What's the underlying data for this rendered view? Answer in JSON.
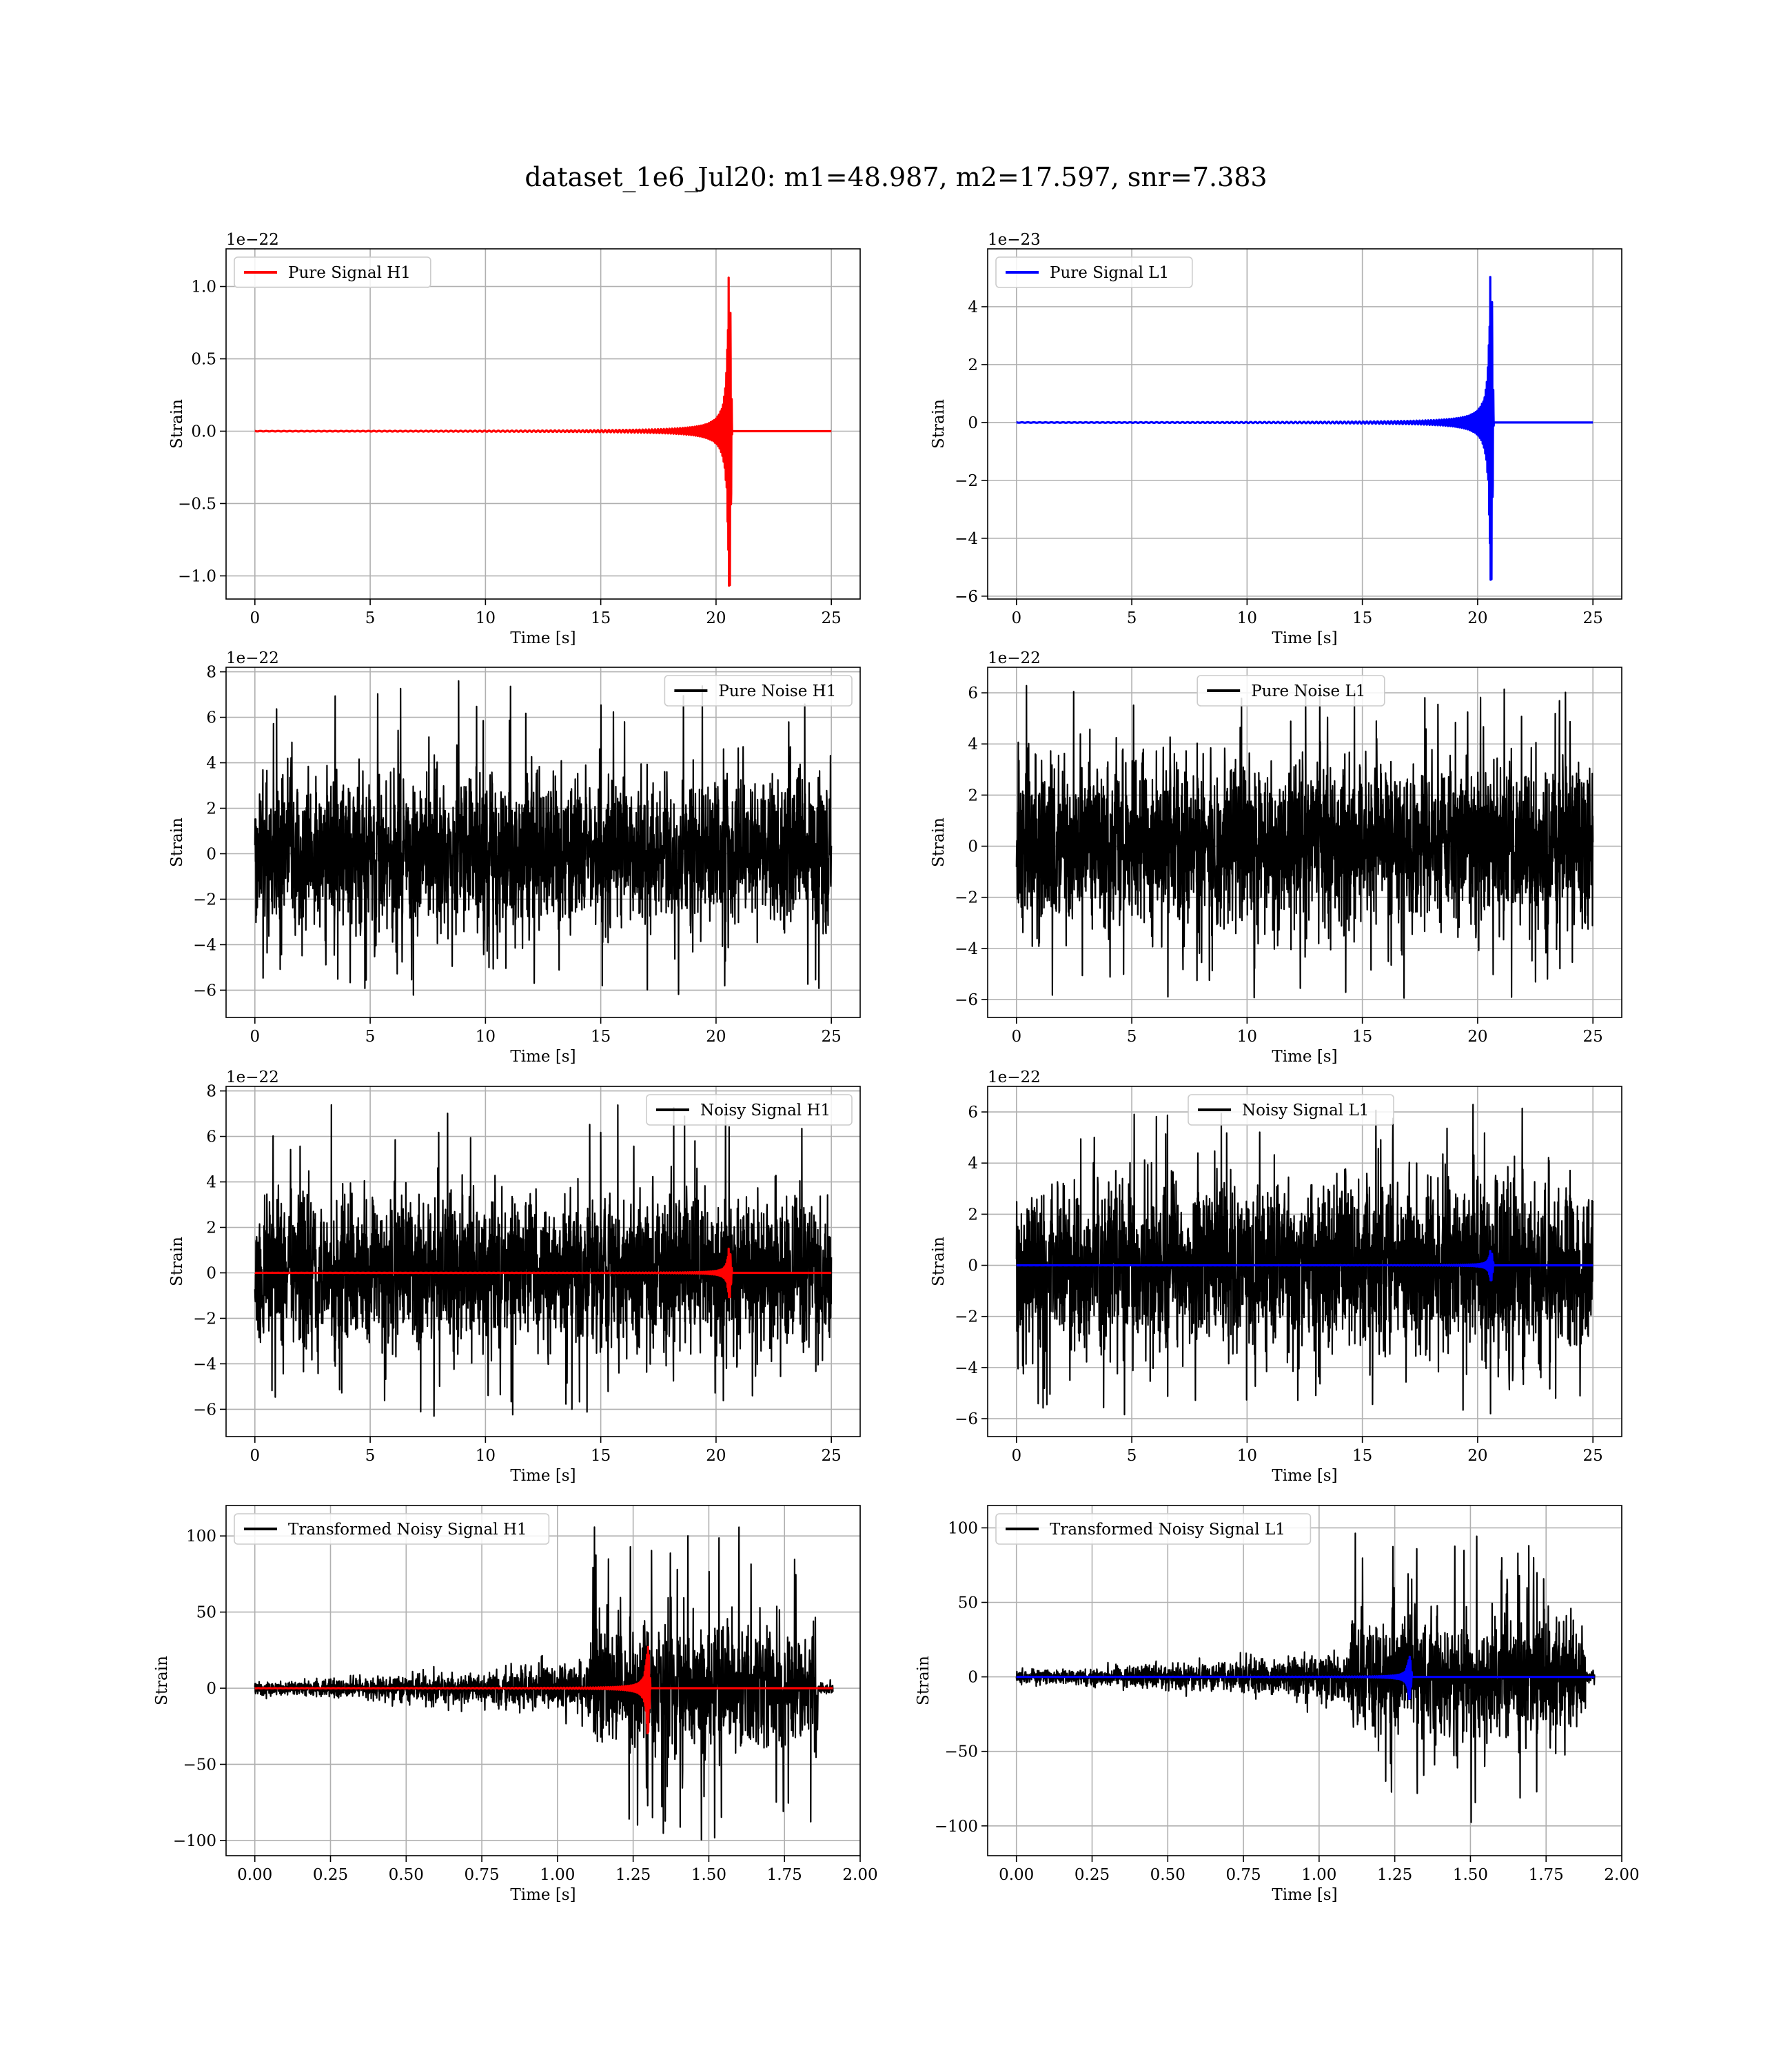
{
  "figure": {
    "title": "dataset_1e6_Jul20: m1=48.987, m2=17.597, snr=7.383"
  },
  "chart_data": [
    {
      "type": "line",
      "panel": "pure-signal-h1",
      "xlabel": "Time [s]",
      "ylabel": "Strain",
      "offset_text": "1e−22",
      "xlim": [
        -1.25,
        26.25
      ],
      "ylim": [
        -1.16,
        1.26
      ],
      "xticks": [
        0,
        5,
        10,
        15,
        20,
        25
      ],
      "xtick_labels": [
        "0",
        "5",
        "10",
        "15",
        "20",
        "25"
      ],
      "yticks": [
        -1.0,
        -0.5,
        0.0,
        0.5,
        1.0
      ],
      "ytick_labels": [
        "−1.0",
        "−0.5",
        "0.0",
        "0.5",
        "1.0"
      ],
      "grid": true,
      "legend": {
        "position": "top-left",
        "entries": [
          {
            "label": "Pure Signal H1",
            "color": "#ff0000"
          }
        ]
      },
      "series": [
        {
          "name": "Pure Signal H1",
          "color": "#ff0000",
          "kind": "chirp",
          "x_start": 0,
          "x_end": 25,
          "merger_time": 20.6,
          "peak_amplitude": 1.14,
          "min_amplitude": -1.1
        }
      ]
    },
    {
      "type": "line",
      "panel": "pure-signal-l1",
      "xlabel": "Time [s]",
      "ylabel": "Strain",
      "offset_text": "1e−23",
      "xlim": [
        -1.25,
        26.25
      ],
      "ylim": [
        -6.1,
        6.0
      ],
      "xticks": [
        0,
        5,
        10,
        15,
        20,
        25
      ],
      "xtick_labels": [
        "0",
        "5",
        "10",
        "15",
        "20",
        "25"
      ],
      "yticks": [
        -6,
        -4,
        -2,
        0,
        2,
        4
      ],
      "ytick_labels": [
        "−6",
        "−4",
        "−2",
        "0",
        "2",
        "4"
      ],
      "grid": true,
      "legend": {
        "position": "top-left",
        "entries": [
          {
            "label": "Pure Signal L1",
            "color": "#0000ff"
          }
        ]
      },
      "series": [
        {
          "name": "Pure Signal L1",
          "color": "#0000ff",
          "kind": "chirp",
          "x_start": 0,
          "x_end": 25,
          "merger_time": 20.6,
          "peak_amplitude": 5.4,
          "min_amplitude": -5.6
        }
      ]
    },
    {
      "type": "line",
      "panel": "pure-noise-h1",
      "xlabel": "Time [s]",
      "ylabel": "Strain",
      "offset_text": "1e−22",
      "xlim": [
        -1.25,
        26.25
      ],
      "ylim": [
        -7.2,
        8.2
      ],
      "xticks": [
        0,
        5,
        10,
        15,
        20,
        25
      ],
      "xtick_labels": [
        "0",
        "5",
        "10",
        "15",
        "20",
        "25"
      ],
      "yticks": [
        -6,
        -4,
        -2,
        0,
        2,
        4,
        6,
        8
      ],
      "ytick_labels": [
        "−6",
        "−4",
        "−2",
        "0",
        "2",
        "4",
        "6",
        "8"
      ],
      "grid": true,
      "legend": {
        "position": "top-right",
        "entries": [
          {
            "label": "Pure Noise H1",
            "color": "#000000"
          }
        ]
      },
      "series": [
        {
          "name": "Pure Noise H1",
          "color": "#000000",
          "kind": "noise",
          "x_start": 0,
          "x_end": 25,
          "max": 7.6,
          "min": -6.3,
          "band": 3.0
        }
      ]
    },
    {
      "type": "line",
      "panel": "pure-noise-l1",
      "xlabel": "Time [s]",
      "ylabel": "Strain",
      "offset_text": "1e−22",
      "xlim": [
        -1.25,
        26.25
      ],
      "ylim": [
        -6.7,
        7.0
      ],
      "xticks": [
        0,
        5,
        10,
        15,
        20,
        25
      ],
      "xtick_labels": [
        "0",
        "5",
        "10",
        "15",
        "20",
        "25"
      ],
      "yticks": [
        -6,
        -4,
        -2,
        0,
        2,
        4,
        6
      ],
      "ytick_labels": [
        "−6",
        "−4",
        "−2",
        "0",
        "2",
        "4",
        "6"
      ],
      "grid": true,
      "legend": {
        "position": "top-center",
        "entries": [
          {
            "label": "Pure Noise L1",
            "color": "#000000"
          }
        ]
      },
      "series": [
        {
          "name": "Pure Noise L1",
          "color": "#000000",
          "kind": "noise",
          "x_start": 0,
          "x_end": 25,
          "max": 6.4,
          "min": -6.0,
          "band": 3.0
        }
      ]
    },
    {
      "type": "line",
      "panel": "noisy-signal-h1",
      "xlabel": "Time [s]",
      "ylabel": "Strain",
      "offset_text": "1e−22",
      "xlim": [
        -1.25,
        26.25
      ],
      "ylim": [
        -7.2,
        8.2
      ],
      "xticks": [
        0,
        5,
        10,
        15,
        20,
        25
      ],
      "xtick_labels": [
        "0",
        "5",
        "10",
        "15",
        "20",
        "25"
      ],
      "yticks": [
        -6,
        -4,
        -2,
        0,
        2,
        4,
        6,
        8
      ],
      "ytick_labels": [
        "−6",
        "−4",
        "−2",
        "0",
        "2",
        "4",
        "6",
        "8"
      ],
      "grid": true,
      "legend": {
        "position": "top-right",
        "entries": [
          {
            "label": "Noisy Signal H1",
            "color": "#000000"
          }
        ]
      },
      "series": [
        {
          "name": "Noisy Signal H1",
          "color": "#000000",
          "kind": "noise",
          "x_start": 0,
          "x_end": 25,
          "max": 7.6,
          "min": -6.3,
          "band": 3.0
        },
        {
          "color": "#ff0000",
          "kind": "chirp",
          "x_start": 0,
          "x_end": 25,
          "merger_time": 20.6,
          "peak_amplitude": 1.14,
          "min_amplitude": -1.1
        }
      ]
    },
    {
      "type": "line",
      "panel": "noisy-signal-l1",
      "xlabel": "Time [s]",
      "ylabel": "Strain",
      "offset_text": "1e−22",
      "xlim": [
        -1.25,
        26.25
      ],
      "ylim": [
        -6.7,
        7.0
      ],
      "xticks": [
        0,
        5,
        10,
        15,
        20,
        25
      ],
      "xtick_labels": [
        "0",
        "5",
        "10",
        "15",
        "20",
        "25"
      ],
      "yticks": [
        -6,
        -4,
        -2,
        0,
        2,
        4,
        6
      ],
      "ytick_labels": [
        "−6",
        "−4",
        "−2",
        "0",
        "2",
        "4",
        "6"
      ],
      "grid": true,
      "legend": {
        "position": "top-center",
        "entries": [
          {
            "label": "Noisy Signal L1",
            "color": "#000000"
          }
        ]
      },
      "series": [
        {
          "name": "Noisy Signal L1",
          "color": "#000000",
          "kind": "noise",
          "x_start": 0,
          "x_end": 25,
          "max": 6.4,
          "min": -6.0,
          "band": 3.0
        },
        {
          "color": "#0000ff",
          "kind": "chirp",
          "x_start": 0,
          "x_end": 25,
          "merger_time": 20.6,
          "peak_amplitude": 0.6,
          "min_amplitude": -0.6
        }
      ]
    },
    {
      "type": "line",
      "panel": "transformed-noisy-signal-h1",
      "xlabel": "Time [s]",
      "ylabel": "Strain",
      "offset_text": "",
      "xlim": [
        -0.095,
        2.0
      ],
      "ylim": [
        -110,
        120
      ],
      "xticks": [
        0.0,
        0.25,
        0.5,
        0.75,
        1.0,
        1.25,
        1.5,
        1.75,
        2.0
      ],
      "xtick_labels": [
        "0.00",
        "0.25",
        "0.50",
        "0.75",
        "1.00",
        "1.25",
        "1.50",
        "1.75",
        "2.00"
      ],
      "yticks": [
        -100,
        -50,
        0,
        50,
        100
      ],
      "ytick_labels": [
        "−100",
        "−50",
        "0",
        "50",
        "100"
      ],
      "grid": true,
      "legend": {
        "position": "top-left",
        "entries": [
          {
            "label": "Transformed Noisy Signal H1",
            "color": "#000000"
          }
        ]
      },
      "series": [
        {
          "name": "Transformed Noisy Signal H1",
          "color": "#000000",
          "kind": "transformed_noise",
          "x_start": 0,
          "x_end": 1.91,
          "burst_start": 1.1,
          "burst_end": 1.86,
          "max": 110,
          "min": -105
        },
        {
          "color": "#ff0000",
          "kind": "chirp",
          "x_start": 0,
          "x_end": 1.91,
          "merger_time": 1.3,
          "peak_amplitude": 30,
          "min_amplitude": -30
        }
      ]
    },
    {
      "type": "line",
      "panel": "transformed-noisy-signal-l1",
      "xlabel": "Time [s]",
      "ylabel": "Strain",
      "offset_text": "",
      "xlim": [
        -0.095,
        2.0
      ],
      "ylim": [
        -120,
        115
      ],
      "xticks": [
        0.0,
        0.25,
        0.5,
        0.75,
        1.0,
        1.25,
        1.5,
        1.75,
        2.0
      ],
      "xtick_labels": [
        "0.00",
        "0.25",
        "0.50",
        "0.75",
        "1.00",
        "1.25",
        "1.50",
        "1.75",
        "2.00"
      ],
      "yticks": [
        -100,
        -50,
        0,
        50,
        100
      ],
      "ytick_labels": [
        "−100",
        "−50",
        "0",
        "50",
        "100"
      ],
      "grid": true,
      "legend": {
        "position": "top-left",
        "entries": [
          {
            "label": "Transformed Noisy Signal L1",
            "color": "#000000"
          }
        ]
      },
      "series": [
        {
          "name": "Transformed Noisy Signal L1",
          "color": "#000000",
          "kind": "transformed_noise",
          "x_start": 0,
          "x_end": 1.91,
          "burst_start": 1.1,
          "burst_end": 1.88,
          "max": 104,
          "min": -108
        },
        {
          "color": "#0000ff",
          "kind": "chirp",
          "x_start": 0,
          "x_end": 1.91,
          "merger_time": 1.3,
          "peak_amplitude": 15,
          "min_amplitude": -15
        }
      ]
    }
  ]
}
